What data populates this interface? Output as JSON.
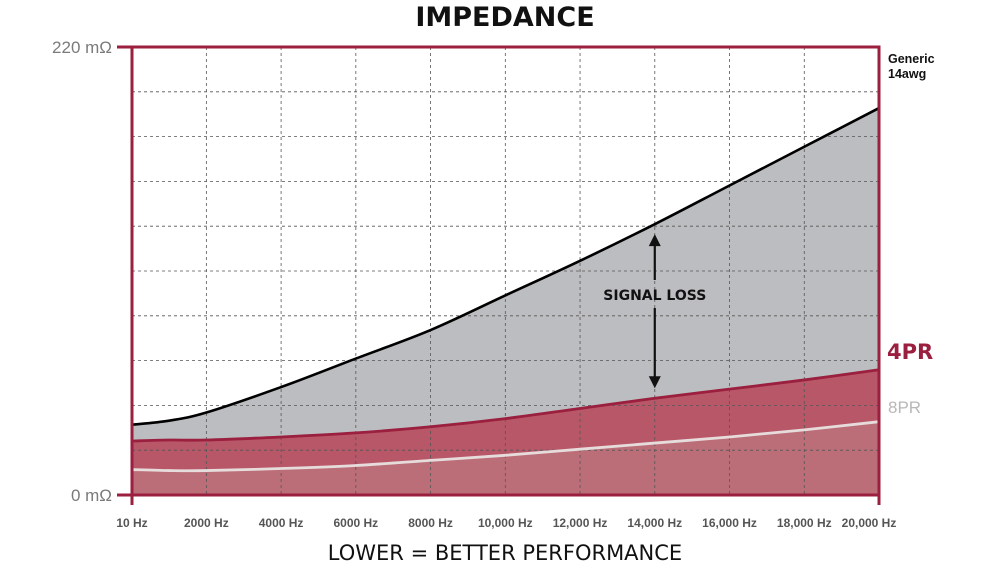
{
  "chart_data": {
    "type": "area",
    "title": "IMPEDANCE",
    "subtitle": "LOWER = BETTER PERFORMANCE",
    "x_tick_labels": [
      "10 Hz",
      "2000 Hz",
      "4000 Hz",
      "6000 Hz",
      "8000 Hz",
      "10,000 Hz",
      "12,000 Hz",
      "14,000 Hz",
      "16,000 Hz",
      "18,000 Hz",
      "20,000 Hz"
    ],
    "x_tick_values": [
      10,
      2000,
      4000,
      6000,
      8000,
      10000,
      12000,
      14000,
      16000,
      18000,
      20000
    ],
    "y_tick_labels": [
      "0 mΩ",
      "220 mΩ"
    ],
    "y_tick_values": [
      0,
      220
    ],
    "xlim": [
      10,
      20000
    ],
    "ylim": [
      0,
      220
    ],
    "grid": true,
    "x": [
      10,
      1000,
      2000,
      4000,
      6000,
      8000,
      10000,
      12000,
      14000,
      16000,
      18000,
      20000
    ],
    "series": [
      {
        "name": "Generic 14awg",
        "color": "#000000",
        "fill": "#bcbdc0",
        "values": [
          34.5,
          36.5,
          40.5,
          53,
          67,
          81,
          98,
          115,
          133,
          152,
          171,
          190
        ]
      },
      {
        "name": "4PR",
        "color": "#9b1f3e",
        "fill": "#b85767",
        "values": [
          26.5,
          27,
          27,
          28.5,
          30.5,
          33.5,
          37.5,
          42.5,
          47.5,
          52,
          56.5,
          61.5
        ]
      },
      {
        "name": "8PR",
        "color": "#e6dcdc",
        "fill": "#bb6e78",
        "values": [
          12.5,
          12,
          12,
          13,
          14.5,
          17,
          19.5,
          22.5,
          25.5,
          28.5,
          32,
          36
        ]
      }
    ],
    "annotation": {
      "text": "SIGNAL LOSS",
      "x": 14000,
      "from": 47.5,
      "to": 133
    }
  },
  "colors": {
    "frame": "#9b1f3e",
    "grid": "#555555",
    "label_4pr": "#9b1f3e"
  }
}
